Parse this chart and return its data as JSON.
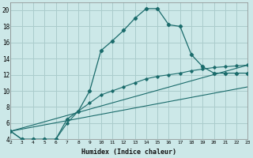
{
  "xlabel": "Humidex (Indice chaleur)",
  "background_color": "#cce8e8",
  "grid_color": "#aacccc",
  "line_color": "#1a6b6b",
  "xlim": [
    2,
    23
  ],
  "ylim": [
    4,
    21
  ],
  "yticks": [
    4,
    6,
    8,
    10,
    12,
    14,
    16,
    18,
    20
  ],
  "xticks": [
    2,
    3,
    4,
    5,
    6,
    7,
    8,
    9,
    10,
    11,
    12,
    13,
    14,
    15,
    16,
    17,
    18,
    19,
    20,
    21,
    22,
    23
  ],
  "line1_x": [
    2,
    3,
    4,
    5,
    6,
    7,
    8,
    9,
    10,
    11,
    12,
    13,
    14,
    15,
    16,
    17,
    18,
    19,
    20,
    21,
    22,
    23
  ],
  "line1_y": [
    5.0,
    4.0,
    4.0,
    4.0,
    4.0,
    6.5,
    7.5,
    10.0,
    15.0,
    16.2,
    17.5,
    19.0,
    20.2,
    20.2,
    18.2,
    18.0,
    14.5,
    13.0,
    12.2,
    12.2,
    12.2,
    12.2
  ],
  "line2_x": [
    2,
    3,
    4,
    5,
    6,
    7,
    8,
    9,
    10,
    11,
    12,
    13,
    14,
    15,
    16,
    17,
    18,
    19,
    20,
    21,
    22,
    23
  ],
  "line2_y": [
    5.0,
    4.0,
    4.0,
    4.0,
    4.0,
    6.0,
    7.5,
    8.5,
    9.5,
    10.0,
    10.5,
    11.0,
    11.5,
    11.8,
    12.0,
    12.2,
    12.5,
    12.7,
    12.9,
    13.0,
    13.1,
    13.2
  ],
  "line3_x": [
    2,
    23
  ],
  "line3_y": [
    5.0,
    13.2
  ],
  "line4_x": [
    2,
    23
  ],
  "line4_y": [
    5.0,
    10.5
  ]
}
